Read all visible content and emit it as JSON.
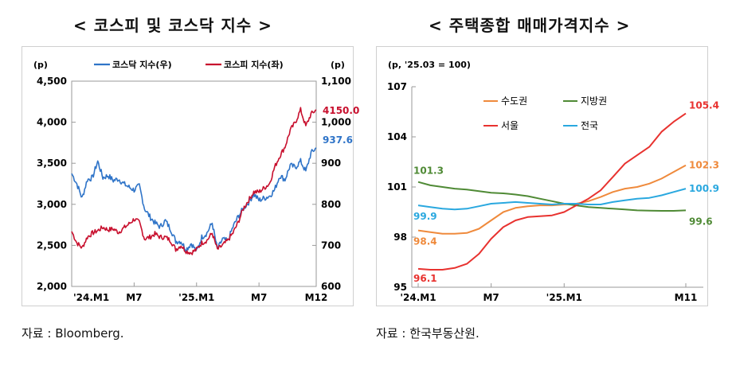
{
  "left_chart": {
    "title": "< 코스피 및 코스닥 지수 >",
    "source": "자료 : Bloomberg."
  },
  "right_chart": {
    "title": "< 주택종합 매매가격지수 >",
    "source": "자료 : 한국부동산원."
  },
  "colors": {
    "kosdaq": "#2f74c8",
    "kospi": "#c8102e",
    "sudogwon": "#ef8a3c",
    "jibang": "#4f8a35",
    "seoul": "#e8322f",
    "national": "#2aa8df"
  },
  "chart_data": [
    {
      "type": "line",
      "title": "< 코스피 및 코스닥 지수 >",
      "left_unit": "(p)",
      "right_unit": "(p)",
      "ylim_left": [
        2000,
        4500
      ],
      "ylim_right": [
        600,
        1100
      ],
      "yticks_left": [
        "2,000",
        "2,500",
        "3,000",
        "3,500",
        "4,000",
        "4,500"
      ],
      "yticks_right": [
        "600",
        "700",
        "800",
        "900",
        "1,000",
        "1,100"
      ],
      "xticks": [
        "'24.M1",
        "M7",
        "'25.M1",
        "M7",
        "M12"
      ],
      "xrange": [
        0,
        23.5
      ],
      "xtick_pos": [
        0,
        6,
        12,
        18,
        23.5
      ],
      "series": [
        {
          "name": "코스닥 지수(우)",
          "axis": "right",
          "x": [
            0,
            0.5,
            1,
            1.5,
            2,
            2.5,
            3,
            3.5,
            4,
            4.5,
            5,
            5.5,
            6,
            6.5,
            7,
            7.5,
            8,
            8.5,
            9,
            9.5,
            10,
            10.5,
            11,
            11.5,
            12,
            12.5,
            13,
            13.5,
            14,
            14.5,
            15,
            15.5,
            16,
            16.5,
            17,
            17.5,
            18,
            18.5,
            19,
            19.5,
            20,
            20.5,
            21,
            21.5,
            22,
            22.5,
            23,
            23.5
          ],
          "values": [
            875,
            850,
            815,
            860,
            865,
            905,
            865,
            870,
            858,
            862,
            850,
            842,
            835,
            845,
            790,
            770,
            755,
            745,
            760,
            740,
            710,
            710,
            690,
            705,
            685,
            720,
            730,
            755,
            690,
            715,
            710,
            745,
            770,
            790,
            805,
            825,
            810,
            815,
            820,
            835,
            870,
            860,
            895,
            890,
            905,
            880,
            925,
            937.6
          ],
          "last_label": "937.6"
        },
        {
          "name": "코스피 지수(좌)",
          "axis": "left",
          "x": [
            0,
            0.5,
            1,
            1.5,
            2,
            2.5,
            3,
            3.5,
            4,
            4.5,
            5,
            5.5,
            6,
            6.5,
            7,
            7.5,
            8,
            8.5,
            9,
            9.5,
            10,
            10.5,
            11,
            11.5,
            12,
            12.5,
            13,
            13.5,
            14,
            14.5,
            15,
            15.5,
            16,
            16.5,
            17,
            17.5,
            18,
            18.5,
            19,
            19.5,
            20,
            20.5,
            21,
            21.5,
            22,
            22.5,
            23,
            23.5
          ],
          "values": [
            2670,
            2530,
            2470,
            2600,
            2650,
            2680,
            2720,
            2690,
            2700,
            2660,
            2710,
            2760,
            2820,
            2780,
            2580,
            2600,
            2640,
            2600,
            2600,
            2560,
            2450,
            2500,
            2430,
            2410,
            2450,
            2530,
            2560,
            2650,
            2450,
            2500,
            2560,
            2650,
            2780,
            2950,
            3050,
            3150,
            3150,
            3200,
            3250,
            3450,
            3590,
            3700,
            3900,
            4000,
            4150,
            3950,
            4100,
            4150
          ],
          "last_label": "4150.0"
        }
      ]
    },
    {
      "type": "line",
      "title": "< 주택종합 매매가격지수 >",
      "unit_label": "(p, '25.03 = 100)",
      "ylim": [
        95,
        107
      ],
      "yticks": [
        "95",
        "98",
        "101",
        "104",
        "107"
      ],
      "xticks": [
        "'24.M1",
        "M7",
        "'25.M1",
        "M11"
      ],
      "xtick_pos": [
        0,
        6,
        12,
        22
      ],
      "xrange": [
        -0.8,
        22.5
      ],
      "series": [
        {
          "name": "수도권",
          "x": [
            0,
            1,
            2,
            3,
            4,
            5,
            6,
            7,
            8,
            9,
            10,
            11,
            12,
            13,
            14,
            15,
            16,
            17,
            18,
            19,
            20,
            21,
            22
          ],
          "values": [
            98.4,
            98.3,
            98.2,
            98.2,
            98.25,
            98.5,
            99.0,
            99.5,
            99.75,
            99.85,
            99.9,
            99.9,
            99.95,
            100.0,
            100.15,
            100.4,
            100.7,
            100.9,
            101.0,
            101.2,
            101.5,
            101.9,
            102.3
          ],
          "first_label": "98.4",
          "last_label": "102.3"
        },
        {
          "name": "지방권",
          "x": [
            0,
            1,
            2,
            3,
            4,
            5,
            6,
            7,
            8,
            9,
            10,
            11,
            12,
            13,
            14,
            15,
            16,
            17,
            18,
            19,
            20,
            21,
            22
          ],
          "values": [
            101.3,
            101.1,
            101.0,
            100.9,
            100.85,
            100.75,
            100.65,
            100.62,
            100.55,
            100.45,
            100.3,
            100.15,
            100.0,
            99.9,
            99.8,
            99.75,
            99.7,
            99.65,
            99.6,
            99.58,
            99.57,
            99.57,
            99.6
          ],
          "first_label": "101.3",
          "last_label": "99.6"
        },
        {
          "name": "서울",
          "x": [
            0,
            1,
            2,
            3,
            4,
            5,
            6,
            7,
            8,
            9,
            10,
            11,
            12,
            13,
            14,
            15,
            16,
            17,
            18,
            19,
            20,
            21,
            22
          ],
          "values": [
            96.1,
            96.05,
            96.05,
            96.15,
            96.4,
            97.0,
            97.9,
            98.6,
            99.0,
            99.2,
            99.25,
            99.3,
            99.5,
            99.9,
            100.3,
            100.8,
            101.6,
            102.4,
            102.9,
            103.4,
            104.3,
            104.9,
            105.4
          ],
          "first_label": "96.1",
          "last_label": "105.4"
        },
        {
          "name": "전국",
          "x": [
            0,
            1,
            2,
            3,
            4,
            5,
            6,
            7,
            8,
            9,
            10,
            11,
            12,
            13,
            14,
            15,
            16,
            17,
            18,
            19,
            20,
            21,
            22
          ],
          "values": [
            99.9,
            99.8,
            99.7,
            99.65,
            99.7,
            99.85,
            100.0,
            100.05,
            100.1,
            100.05,
            100.0,
            99.95,
            100.0,
            100.0,
            99.95,
            99.95,
            100.1,
            100.2,
            100.3,
            100.35,
            100.5,
            100.7,
            100.9
          ],
          "first_label": "99.9",
          "last_label": "100.9"
        }
      ]
    }
  ]
}
